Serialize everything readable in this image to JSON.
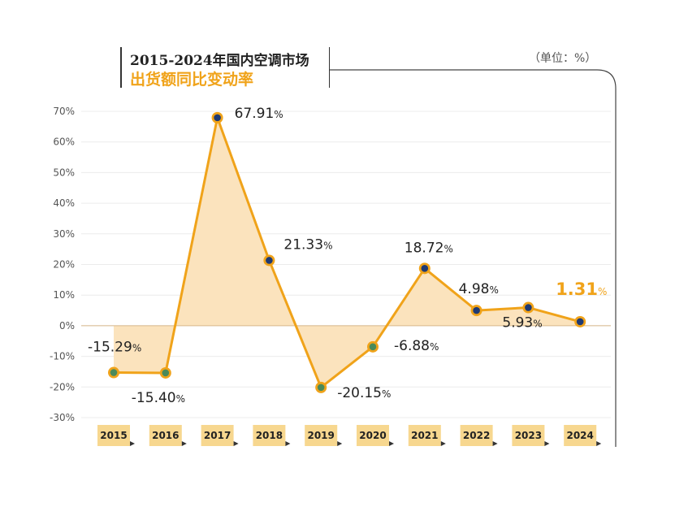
{
  "header": {
    "title_line1": "2015-2024年国内空调市场",
    "title_line2": "出货额同比变动率",
    "unit": "（单位：%）"
  },
  "colors": {
    "line": "#f0a31a",
    "area": "#fbe3bd",
    "marker_dark": "#1f3a73",
    "marker_green": "#4a8a5a",
    "highlight_label": "#f0a31a",
    "tick_badge": "#f7d78f"
  },
  "chart_data": {
    "type": "line",
    "title": "出货额同比变动率",
    "categories": [
      "2015",
      "2016",
      "2017",
      "2018",
      "2019",
      "2020",
      "2021",
      "2022",
      "2023",
      "2024"
    ],
    "series": [
      {
        "values": [
          -15.29,
          -15.4,
          67.91,
          21.33,
          -20.15,
          -6.88,
          18.72,
          4.98,
          5.93,
          1.31
        ]
      }
    ],
    "data_labels": [
      "-15.29",
      "-15.40",
      "67.91",
      "21.33",
      "-20.15",
      "-6.88",
      "18.72",
      "4.98",
      "5.93",
      "1.31"
    ],
    "data_label_suffix": "%",
    "marker_style": [
      "green",
      "green",
      "dark",
      "dark",
      "green",
      "green",
      "dark",
      "dark",
      "dark",
      "dark"
    ],
    "highlight_last": true,
    "ylim": [
      -30,
      70
    ],
    "yticks": [
      70,
      60,
      50,
      40,
      30,
      20,
      10,
      0,
      -10,
      -20,
      -30
    ],
    "ytick_labels": [
      "70%",
      "60%",
      "50%",
      "40%",
      "30%",
      "20%",
      "10%",
      "0%",
      "-10%",
      "-20%",
      "-30%"
    ],
    "grid": true,
    "area_fill_to_zero": true
  }
}
